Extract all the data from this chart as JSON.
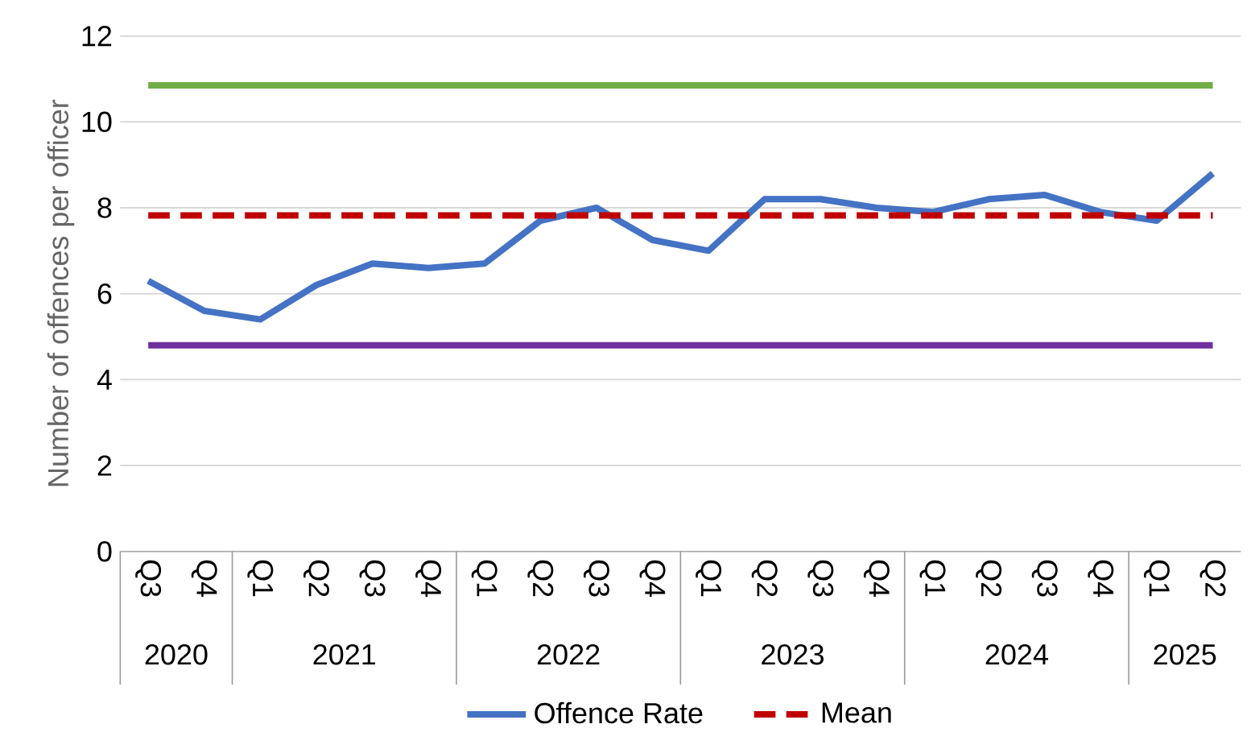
{
  "chart_data": {
    "type": "line",
    "ylabel": "Number of offences per officer",
    "categories": [
      "Q3",
      "Q4",
      "Q1",
      "Q2",
      "Q3",
      "Q4",
      "Q1",
      "Q2",
      "Q3",
      "Q4",
      "Q1",
      "Q2",
      "Q3",
      "Q4",
      "Q1",
      "Q2",
      "Q3",
      "Q4",
      "Q1",
      "Q2"
    ],
    "series": [
      {
        "name": "Offence Rate",
        "color": "#4472c4",
        "line_style": "solid",
        "values": [
          6.3,
          5.6,
          5.4,
          6.2,
          6.7,
          6.6,
          6.7,
          7.7,
          8.0,
          7.25,
          7.0,
          8.2,
          8.2,
          8.0,
          7.9,
          8.2,
          8.3,
          7.9,
          7.7,
          8.8
        ]
      },
      {
        "name": "Mean",
        "color": "#c00000",
        "line_style": "dashed",
        "values": [
          7.82,
          7.82,
          7.82,
          7.82,
          7.82,
          7.82,
          7.82,
          7.82,
          7.82,
          7.82,
          7.82,
          7.82,
          7.82,
          7.82,
          7.82,
          7.82,
          7.82,
          7.82,
          7.82,
          7.82
        ]
      }
    ],
    "ref_lines": [
      {
        "axis": "y",
        "value": 10.85,
        "color": "#70ad47"
      },
      {
        "axis": "y",
        "value": 4.8,
        "color": "#7030a0"
      }
    ],
    "annotations": [
      "2020",
      "2021",
      "2022",
      "2023",
      "2024",
      "2025"
    ],
    "ylim": [
      0,
      12
    ],
    "yticks": [
      0,
      2,
      4,
      6,
      8,
      10,
      12
    ],
    "grid": "y",
    "legend": "bottom",
    "marker": "none"
  }
}
